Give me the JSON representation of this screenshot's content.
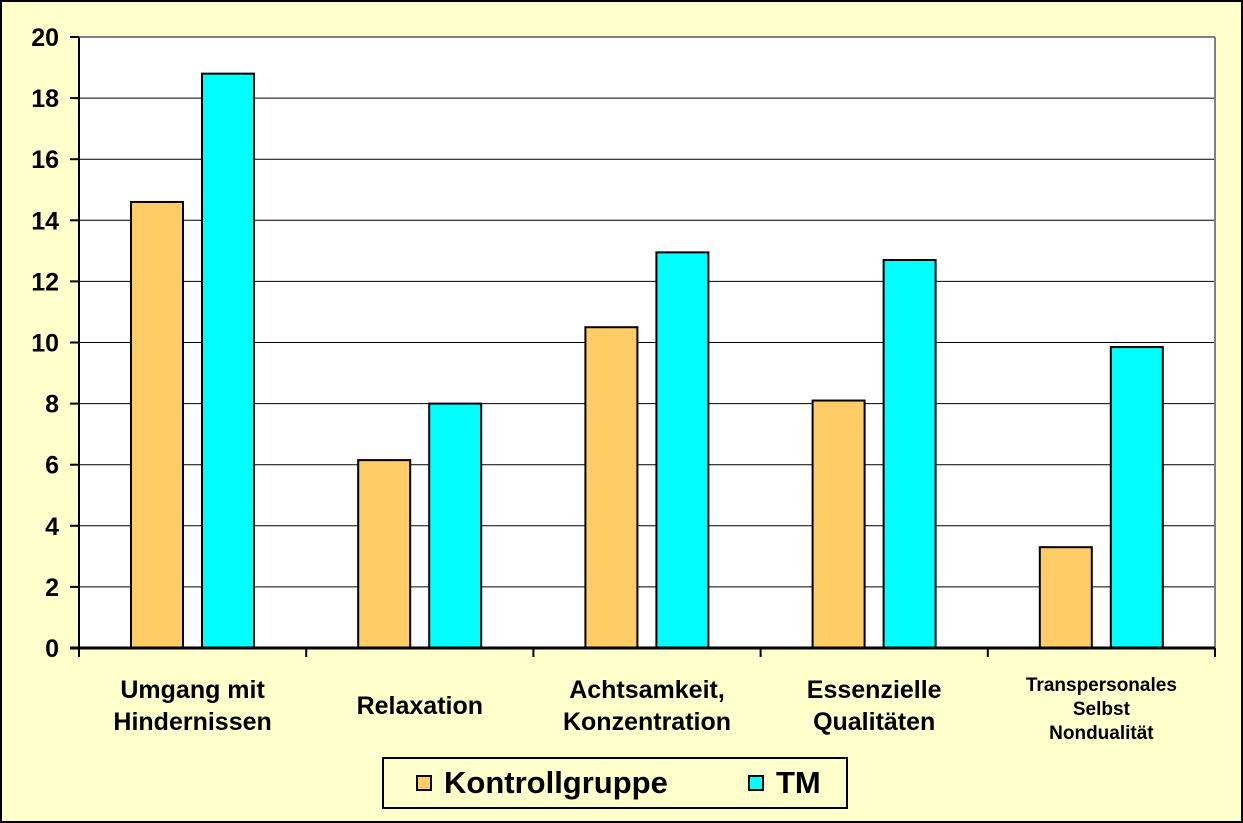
{
  "chart_data": {
    "type": "bar",
    "title": "",
    "xlabel": "",
    "ylabel": "",
    "ylim": [
      0,
      20
    ],
    "yticks": [
      "0",
      "2",
      "4",
      "6",
      "8",
      "10",
      "12",
      "14",
      "16",
      "18",
      "20"
    ],
    "grid": true,
    "legend_position": "bottom",
    "categories": [
      [
        "Umgang mit",
        "Hindernissen"
      ],
      [
        "Relaxation"
      ],
      [
        "Achtsamkeit,",
        "Konzentration"
      ],
      [
        "Essenzielle",
        "Qualitäten"
      ],
      [
        "Transpersonales",
        "Selbst",
        "Nondualität"
      ]
    ],
    "series": [
      {
        "name": "Kontrollgruppe",
        "color": "#ffcc66",
        "values": [
          14.6,
          6.15,
          10.5,
          8.1,
          3.3
        ]
      },
      {
        "name": "TM",
        "color": "#00ffff",
        "values": [
          18.8,
          8.0,
          12.95,
          12.7,
          9.85
        ]
      }
    ],
    "colors": {
      "background": "#ffffcc",
      "plot_background": "#ffffff",
      "gridline": "#000000"
    }
  }
}
